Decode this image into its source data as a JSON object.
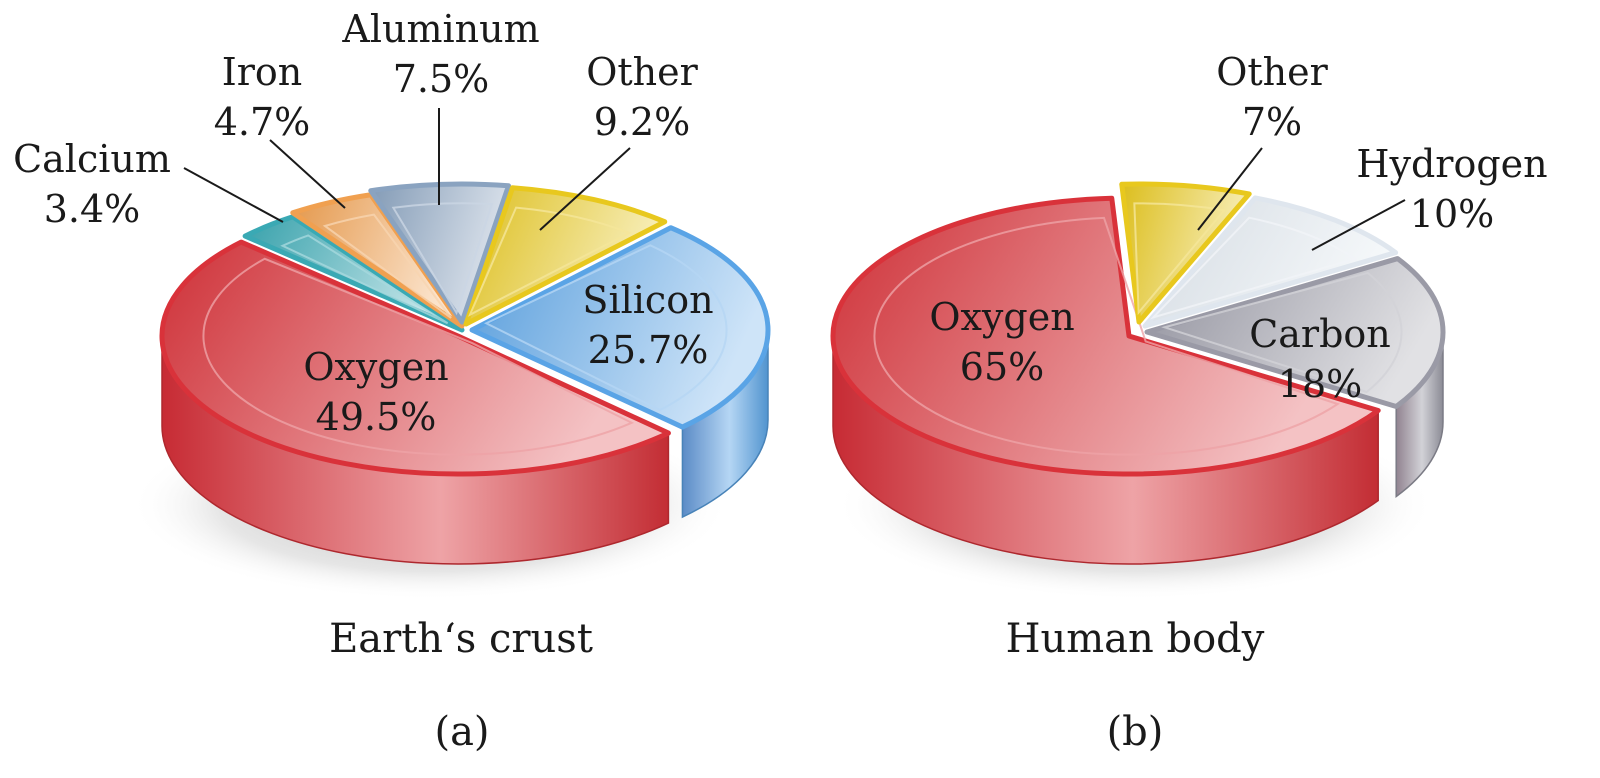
{
  "chart_data": [
    {
      "type": "pie",
      "caption": "Earth‘s crust",
      "panel": "(a)",
      "slices": [
        {
          "name": "Oxygen",
          "value": 49.5,
          "value_label": "49.5%",
          "color": "#d9323a"
        },
        {
          "name": "Calcium",
          "value": 3.4,
          "value_label": "3.4%",
          "color": "#3aa9b4"
        },
        {
          "name": "Iron",
          "value": 4.7,
          "value_label": "4.7%",
          "color": "#f0a050"
        },
        {
          "name": "Aluminum",
          "value": 7.5,
          "value_label": "7.5%",
          "color": "#8aa3c0"
        },
        {
          "name": "Other",
          "value": 9.2,
          "value_label": "9.2%",
          "color": "#e8c81e"
        },
        {
          "name": "Silicon",
          "value": 25.7,
          "value_label": "25.7%",
          "color": "#5aa4e6"
        }
      ]
    },
    {
      "type": "pie",
      "caption": "Human body",
      "panel": "(b)",
      "slices": [
        {
          "name": "Oxygen",
          "value": 65,
          "value_label": "65%",
          "color": "#d9323a"
        },
        {
          "name": "Other",
          "value": 7,
          "value_label": "7%",
          "color": "#e8c81e"
        },
        {
          "name": "Hydrogen",
          "value": 10,
          "value_label": "10%",
          "color": "#dfe6ee"
        },
        {
          "name": "Carbon",
          "value": 18,
          "value_label": "18%",
          "color": "#9a9aa6"
        }
      ]
    }
  ]
}
